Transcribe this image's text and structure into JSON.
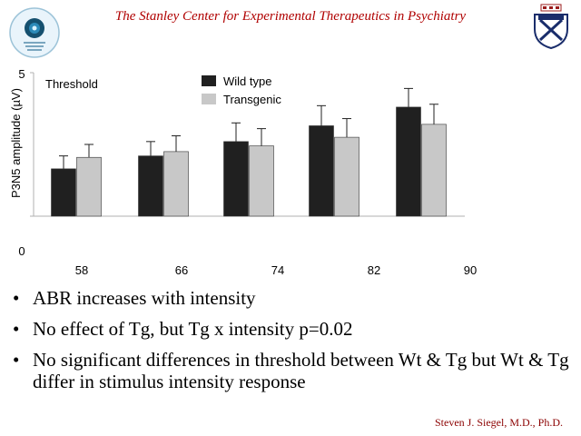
{
  "header": {
    "title": "The Stanley Center for Experimental Therapeutics in Psychiatry",
    "left_logo_icon": "stanley-center-logo",
    "right_logo_icon": "penn-shield-logo"
  },
  "chart_data": {
    "type": "bar",
    "annotation": "Threshold",
    "ylabel": "P3N5 amplitude (µV)",
    "xlabel": "",
    "categories": [
      "58",
      "66",
      "74",
      "82"
    ],
    "x_ticks": [
      "58",
      "66",
      "74",
      "82",
      "90"
    ],
    "y_ticks": [
      "5",
      "0"
    ],
    "ylim": [
      0,
      5
    ],
    "series": [
      {
        "name": "Wild type",
        "color": "#202020",
        "values": [
          1.65,
          2.1,
          2.6,
          3.15
        ],
        "errors": [
          0.45,
          0.5,
          0.65,
          0.7
        ]
      },
      {
        "name": "Transgenic",
        "color": "#c8c8c8",
        "values": [
          2.05,
          2.25,
          2.45,
          2.75
        ],
        "errors": [
          0.45,
          0.55,
          0.6,
          0.65
        ]
      }
    ],
    "extra_group": {
      "category": "90",
      "values": [
        3.8,
        3.2
      ],
      "errors": [
        0.65,
        0.7
      ]
    },
    "legend": "top-center",
    "grid": false
  },
  "bullets": [
    "ABR increases with intensity",
    "No effect of Tg, but Tg x intensity p=0.02",
    "No significant differences in threshold between Wt & Tg but Wt & Tg differ in stimulus intensity response"
  ],
  "bullet_glyph": "•",
  "footer": {
    "author": "Steven J. Siegel, M.D., Ph.D."
  }
}
